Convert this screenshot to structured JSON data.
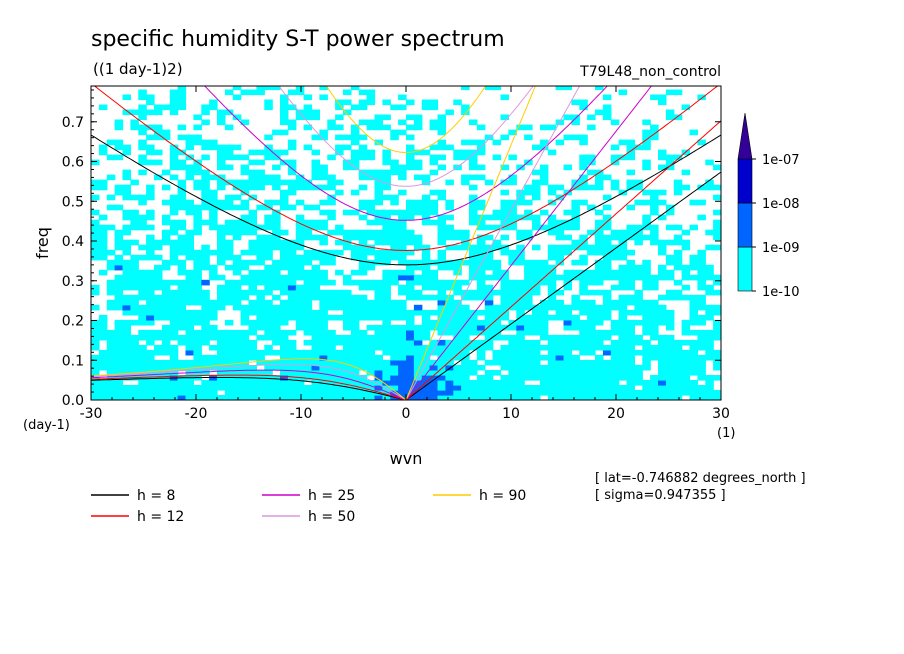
{
  "chart_data": {
    "type": "heatmap",
    "title": "specific humidity S-T power spectrum",
    "subtitle": "((1 day-1)2)",
    "run_label": "T79L48_non_control",
    "xlabel": "wvn",
    "ylabel": "freq",
    "x_unit": "(1)",
    "y_unit": "(day-1)",
    "xlim": [
      -30,
      30
    ],
    "ylim": [
      0,
      0.79
    ],
    "xticks": [
      -30,
      -20,
      -10,
      0,
      10,
      20,
      30
    ],
    "yticks": [
      0.0,
      0.1,
      0.2,
      0.3,
      0.4,
      0.5,
      0.6,
      0.7
    ],
    "xtick_labels": [
      "-30",
      "-20",
      "-10",
      "0",
      "10",
      "20",
      "30"
    ],
    "ytick_labels": [
      "0.0",
      "0.1",
      "0.2",
      "0.3",
      "0.4",
      "0.5",
      "0.6",
      "0.7"
    ],
    "colorbar": {
      "levels": [
        "1e-10",
        "1e-09",
        "1e-08",
        "1e-07"
      ],
      "colors": [
        "#00ffff",
        "#0066ff",
        "#0000cc",
        "#330099"
      ]
    },
    "dispersion_curves": [
      {
        "name": "h =  8",
        "h": 8,
        "color": "#000000"
      },
      {
        "name": "h = 12",
        "h": 12,
        "color": "#ff0000"
      },
      {
        "name": "h = 25",
        "h": 25,
        "color": "#cc00cc"
      },
      {
        "name": "h = 50",
        "h": 50,
        "color": "#dd99dd"
      },
      {
        "name": "h = 90",
        "h": 90,
        "color": "#ffcc00"
      }
    ],
    "annotations": [
      "[ lat=-0.746882 degrees_north ]",
      "[ sigma=0.947355 ]"
    ]
  }
}
